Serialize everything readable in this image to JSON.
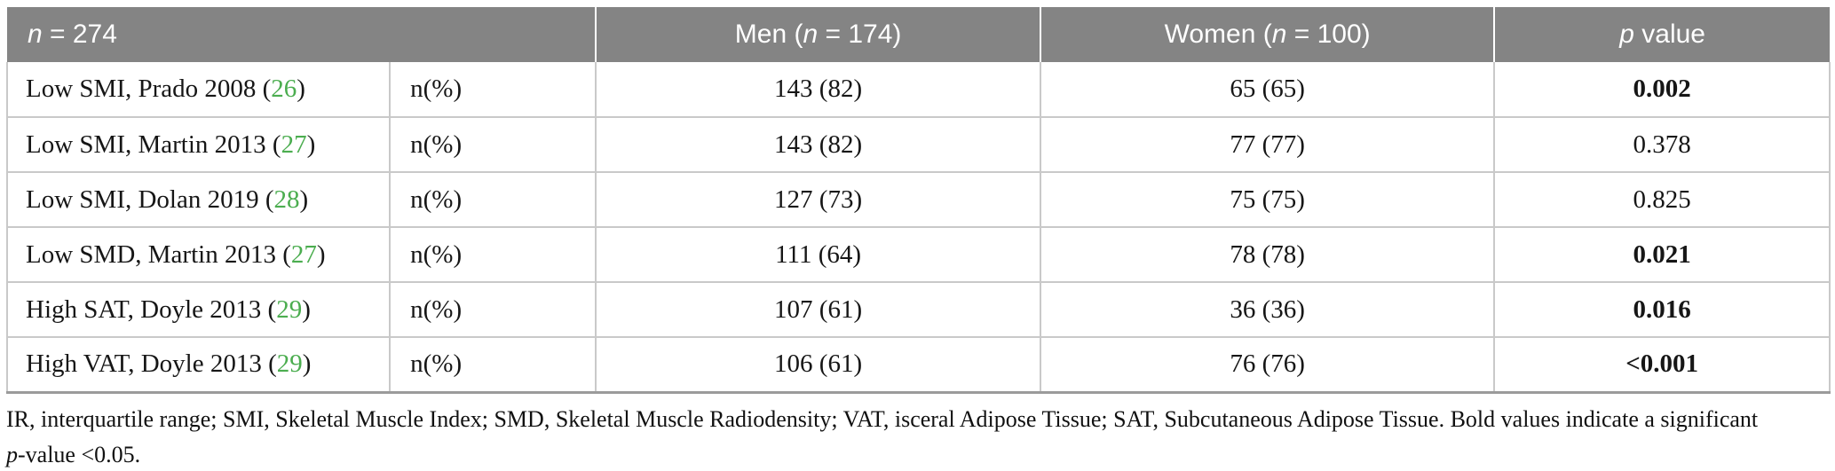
{
  "table": {
    "header": {
      "total": {
        "italic": "n",
        "rest": " = 274"
      },
      "men": {
        "prefix": "Men (",
        "italic": "n",
        "rest": " = 174)"
      },
      "women": {
        "prefix": "Women (",
        "italic": "n",
        "rest": " = 100)"
      },
      "pcol": {
        "italic": "p",
        "rest": " value"
      }
    },
    "rows": [
      {
        "label_prefix": "Low SMI, Prado 2008 (",
        "ref": "26",
        "label_suffix": ")",
        "measure": "n(%)",
        "men": "143 (82)",
        "women": "65 (65)",
        "p": "0.002",
        "p_bold": true
      },
      {
        "label_prefix": "Low SMI, Martin 2013 (",
        "ref": "27",
        "label_suffix": ")",
        "measure": "n(%)",
        "men": "143 (82)",
        "women": "77 (77)",
        "p": "0.378",
        "p_bold": false
      },
      {
        "label_prefix": "Low SMI, Dolan 2019 (",
        "ref": "28",
        "label_suffix": ")",
        "measure": "n(%)",
        "men": "127 (73)",
        "women": "75 (75)",
        "p": "0.825",
        "p_bold": false
      },
      {
        "label_prefix": "Low SMD, Martin 2013 (",
        "ref": "27",
        "label_suffix": ")",
        "measure": "n(%)",
        "men": "111 (64)",
        "women": "78 (78)",
        "p": "0.021",
        "p_bold": true
      },
      {
        "label_prefix": "High SAT, Doyle 2013 (",
        "ref": "29",
        "label_suffix": ")",
        "measure": "n(%)",
        "men": "107 (61)",
        "women": "36 (36)",
        "p": "0.016",
        "p_bold": true
      },
      {
        "label_prefix": "High VAT, Doyle 2013 (",
        "ref": "29",
        "label_suffix": ")",
        "measure": "n(%)",
        "men": "106 (61)",
        "women": "76 (76)",
        "p": "<0.001",
        "p_bold": true
      }
    ]
  },
  "footnote": {
    "line1": "IR, interquartile range; SMI, Skeletal Muscle Index; SMD, Skeletal Muscle Radiodensity; VAT, isceral Adipose Tissue; SAT, Subcutaneous Adipose Tissue. Bold values indicate a significant",
    "line2_italic": "p",
    "line2_rest": "-value <0.05."
  },
  "colors": {
    "header_bg": "#848484",
    "header_text": "#ffffff",
    "citation_green": "#4bad4f",
    "grid_line": "#c9c9c9",
    "bottom_border": "#9b9b9b"
  }
}
